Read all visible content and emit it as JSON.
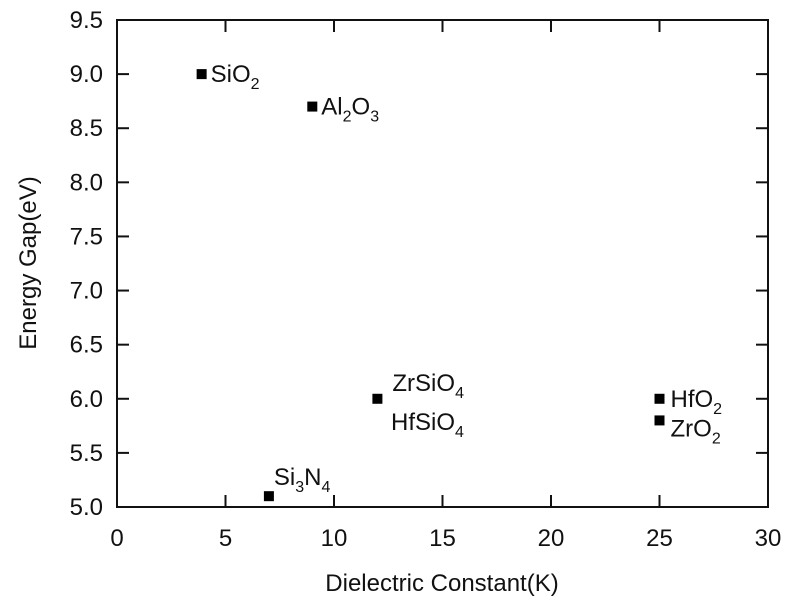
{
  "chart_data": {
    "type": "scatter",
    "title": "",
    "xlabel": "Dielectric Constant(K)",
    "ylabel": "Energy Gap(eV)",
    "xlim": [
      0,
      30
    ],
    "ylim": [
      5.0,
      9.5
    ],
    "x_ticks": [
      0,
      5,
      10,
      15,
      20,
      25,
      30
    ],
    "x_tick_labels": [
      "0",
      "5",
      "10",
      "15",
      "20",
      "25",
      "30"
    ],
    "y_ticks": [
      5.0,
      5.5,
      6.0,
      6.5,
      7.0,
      7.5,
      8.0,
      8.5,
      9.0,
      9.5
    ],
    "y_tick_labels": [
      "5.0",
      "5.5",
      "6.0",
      "6.5",
      "7.0",
      "7.5",
      "8.0",
      "8.5",
      "9.0",
      "9.5"
    ],
    "grid": false,
    "legend": "none",
    "marker_color": "#000000",
    "points": [
      {
        "x": 3.9,
        "y": 9.0,
        "label": [
          {
            "t": "SiO"
          },
          {
            "t": "2",
            "sub": true
          }
        ]
      },
      {
        "x": 9.0,
        "y": 8.7,
        "label": [
          {
            "t": "Al"
          },
          {
            "t": "2",
            "sub": true
          },
          {
            "t": "O"
          },
          {
            "t": "3",
            "sub": true
          }
        ]
      },
      {
        "x": 12.0,
        "y": 6.0,
        "label": [
          {
            "t": "ZrSiO"
          },
          {
            "t": "4",
            "sub": true
          }
        ]
      },
      {
        "x": 25.0,
        "y": 6.0,
        "label": [
          {
            "t": "HfO"
          },
          {
            "t": "2",
            "sub": true
          }
        ]
      },
      {
        "x": 25.0,
        "y": 5.8,
        "label": [
          {
            "t": "ZrO"
          },
          {
            "t": "2",
            "sub": true
          }
        ]
      },
      {
        "x": 7.0,
        "y": 5.1,
        "label": [
          {
            "t": "Si"
          },
          {
            "t": "3",
            "sub": true
          },
          {
            "t": "N"
          },
          {
            "t": "4",
            "sub": true
          }
        ]
      }
    ],
    "annotations": [
      {
        "text": [
          {
            "t": "HfSiO"
          },
          {
            "t": "4",
            "sub": true
          }
        ]
      }
    ]
  }
}
